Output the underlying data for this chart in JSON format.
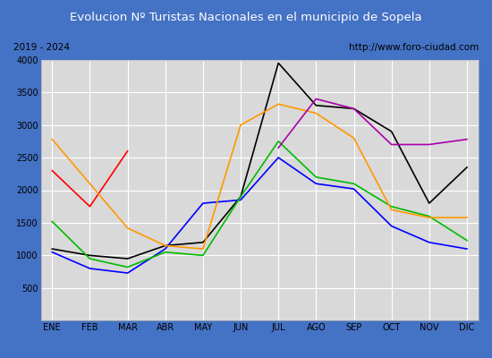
{
  "title": "Evolucion Nº Turistas Nacionales en el municipio de Sopela",
  "subtitle_left": "2019 - 2024",
  "subtitle_right": "http://www.foro-ciudad.com",
  "months": [
    "ENE",
    "FEB",
    "MAR",
    "ABR",
    "MAY",
    "JUN",
    "JUL",
    "AGO",
    "SEP",
    "OCT",
    "NOV",
    "DIC"
  ],
  "series": {
    "2024": {
      "values": [
        2300,
        1750,
        2600,
        null,
        null,
        null,
        null,
        null,
        null,
        null,
        null,
        null
      ],
      "color": "#ff0000"
    },
    "2023": {
      "values": [
        1100,
        1000,
        950,
        1150,
        1200,
        1900,
        3950,
        3300,
        3250,
        2900,
        1800,
        2350
      ],
      "color": "#000000"
    },
    "2022": {
      "values": [
        1050,
        800,
        730,
        1100,
        1800,
        1850,
        2500,
        2100,
        2020,
        1450,
        1200,
        1100
      ],
      "color": "#0000ff"
    },
    "2021": {
      "values": [
        1520,
        950,
        820,
        1050,
        1000,
        1900,
        2750,
        2200,
        2100,
        1750,
        1600,
        1230
      ],
      "color": "#00bb00"
    },
    "2020": {
      "values": [
        2780,
        2100,
        1420,
        1150,
        1100,
        3000,
        3320,
        3180,
        2800,
        1700,
        1580,
        1580
      ],
      "color": "#ff9900"
    },
    "2019": {
      "values": [
        null,
        null,
        null,
        null,
        null,
        null,
        2650,
        3400,
        3250,
        2700,
        2700,
        2780
      ],
      "color": "#aa00aa"
    }
  },
  "ylim": [
    0,
    4000
  ],
  "yticks": [
    0,
    500,
    1000,
    1500,
    2000,
    2500,
    3000,
    3500,
    4000
  ],
  "outer_bg": "#4472c4",
  "inner_bg": "#d9d9d9",
  "plot_bg": "#d9d9d9",
  "title_bg": "#4472c4",
  "title_color": "#ffffff",
  "title_fontsize": 9.5,
  "subtitle_fontsize": 7.5,
  "tick_fontsize": 7,
  "legend_fontsize": 7.5
}
